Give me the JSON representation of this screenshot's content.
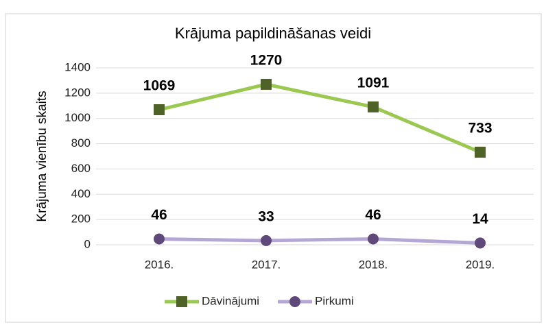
{
  "chart_data": {
    "type": "line",
    "title": "Krājuma papildināšanas veidi",
    "y_label": "Krājuma vienību skaits",
    "categories": [
      "2016.",
      "2017.",
      "2018.",
      "2019."
    ],
    "series": [
      {
        "name": "Dāvinājumi",
        "color": "#9bc850",
        "marker_color": "#4f6228",
        "marker": "square",
        "values": [
          1069,
          1270,
          1091,
          733
        ]
      },
      {
        "name": "Pirkumi",
        "color": "#b4a7d6",
        "marker_color": "#5f497a",
        "marker": "circle",
        "values": [
          46,
          33,
          46,
          14
        ]
      }
    ],
    "ylim": [
      0,
      1400
    ],
    "yticks": [
      0,
      200,
      400,
      600,
      800,
      1000,
      1200,
      1400
    ],
    "grid": true,
    "legend": "bottom"
  }
}
